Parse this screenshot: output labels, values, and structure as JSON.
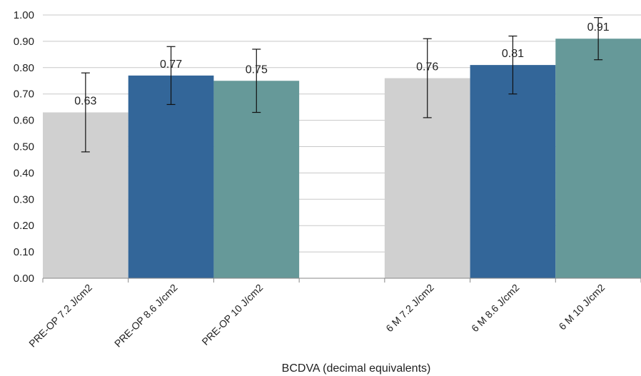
{
  "chart_data": {
    "type": "bar",
    "xlabel": "BCDVA (decimal equivalents)",
    "ylabel": "",
    "ylim": [
      0,
      1
    ],
    "y_ticks": [
      "0.00",
      "0.10",
      "0.20",
      "0.30",
      "0.40",
      "0.50",
      "0.60",
      "0.70",
      "0.80",
      "0.90",
      "1.00"
    ],
    "grid": true,
    "categories": [
      "PRE-OP 7.2 J/cm2",
      "PRE-OP 8.6 J/cm2",
      "PRE-OP 10 J/cm2",
      "",
      "6 M 7.2 J/cm2",
      "6 M 8.6 J/cm2",
      "6 M 10 J/cm2"
    ],
    "values": [
      0.63,
      0.77,
      0.75,
      null,
      0.76,
      0.81,
      0.91
    ],
    "data_labels": [
      "0.63",
      "0.77",
      "0.75",
      "",
      "0.76",
      "0.81",
      "0.91"
    ],
    "error_low": [
      0.48,
      0.66,
      0.63,
      null,
      0.61,
      0.7,
      0.83
    ],
    "error_high": [
      0.78,
      0.88,
      0.87,
      null,
      0.91,
      0.92,
      0.99
    ],
    "colors": [
      "#d0d0d0",
      "#336699",
      "#669999",
      "",
      "#d0d0d0",
      "#336699",
      "#669999"
    ]
  }
}
